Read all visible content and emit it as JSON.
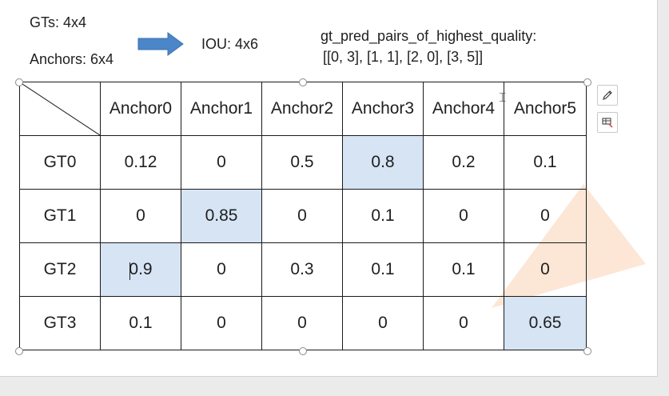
{
  "labels": {
    "gts": "GTs: 4x4",
    "anchors": "Anchors: 6x4",
    "iou": "IOU: 4x6",
    "pairs_title": "gt_pred_pairs_of_highest_quality:",
    "pairs_value": "[[0, 3], [1, 1], [2, 0], [3, 5]]"
  },
  "table": {
    "columns": [
      "Anchor0",
      "Anchor1",
      "Anchor2",
      "Anchor3",
      "Anchor4",
      "Anchor5"
    ],
    "rows": [
      {
        "label": "GT0",
        "cells": [
          "0.12",
          "0",
          "0.5",
          "0.8",
          "0.2",
          "0.1"
        ],
        "highlight_index": 3
      },
      {
        "label": "GT1",
        "cells": [
          "0",
          "0.85",
          "0",
          "0.1",
          "0",
          "0"
        ],
        "highlight_index": 1
      },
      {
        "label": "GT2",
        "cells": [
          "0.9",
          "0",
          "0.3",
          "0.1",
          "0.1",
          "0"
        ],
        "highlight_index": 0
      },
      {
        "label": "GT3",
        "cells": [
          "0.1",
          "0",
          "0",
          "0",
          "0",
          "0.65"
        ],
        "highlight_index": 5
      }
    ]
  },
  "colors": {
    "highlight": "#d6e4f4",
    "arrow": "#4a86c8",
    "border": "#1a1a1a"
  },
  "icons": {
    "arrow": "right-arrow-icon",
    "pen": "pen-icon",
    "style": "brush-icon",
    "cursor": "text-cursor-icon"
  }
}
